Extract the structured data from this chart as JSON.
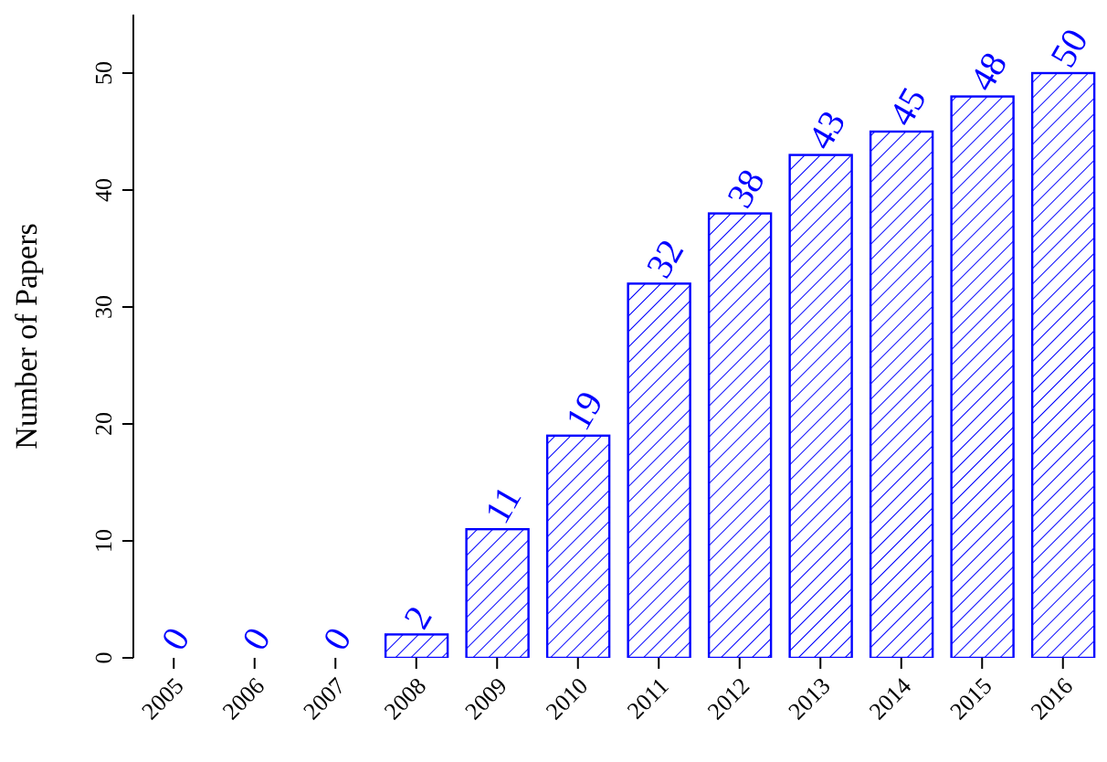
{
  "chart_data": {
    "type": "bar",
    "ylabel": "Number of Papers",
    "categories": [
      "2005",
      "2006",
      "2007",
      "2008",
      "2009",
      "2010",
      "2011",
      "2012",
      "2013",
      "2014",
      "2015",
      "2016"
    ],
    "values": [
      0,
      0,
      0,
      2,
      11,
      19,
      32,
      38,
      43,
      45,
      48,
      50
    ],
    "color": "#0000ff",
    "ylim": [
      0,
      55
    ],
    "yticks": [
      0,
      10,
      20,
      30,
      40,
      50
    ],
    "data_labels": true,
    "grid": false,
    "legend": false
  }
}
